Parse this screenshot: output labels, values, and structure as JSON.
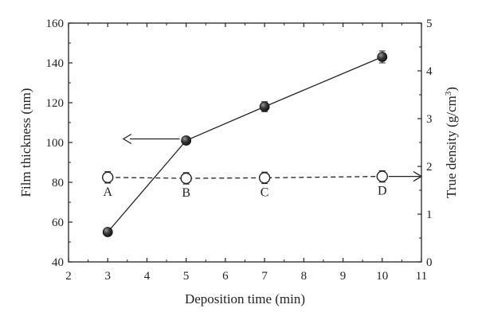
{
  "chart_data": {
    "type": "line",
    "xlabel": "Deposition time (min)",
    "ylabel_left": "Film thickness (nm)",
    "ylabel_right_main": "True density (g/cm",
    "ylabel_right_sup": "3",
    "ylabel_right_end": ")",
    "xlim": [
      2,
      11
    ],
    "ylim_left": [
      40,
      160
    ],
    "ylim_right": [
      0,
      5
    ],
    "x_ticks": [
      2,
      3,
      4,
      5,
      6,
      7,
      8,
      9,
      10,
      11
    ],
    "y_ticks_left": [
      40,
      60,
      80,
      100,
      120,
      140,
      160
    ],
    "y_ticks_right": [
      0,
      1,
      2,
      3,
      4,
      5
    ],
    "series": [
      {
        "axis": "left",
        "marker": "filled-circle",
        "line_style": "solid",
        "color": "#222222",
        "x": [
          3,
          5,
          7,
          10
        ],
        "y": [
          55,
          101,
          118,
          143
        ],
        "error": [
          0.5,
          1.5,
          2.5,
          3
        ]
      },
      {
        "axis": "right",
        "marker": "open-circle",
        "line_style": "dashed",
        "color": "#222222",
        "x": [
          3,
          5,
          7,
          10
        ],
        "y": [
          1.77,
          1.75,
          1.76,
          1.79
        ],
        "error": [
          0.12,
          0.12,
          0.12,
          0.12
        ],
        "point_labels": [
          "A",
          "B",
          "C",
          "D"
        ]
      }
    ],
    "annotations": [
      {
        "type": "arrow",
        "direction": "left",
        "points_to": "left axis"
      },
      {
        "type": "arrow",
        "direction": "right",
        "points_to": "right axis"
      }
    ],
    "grid": false,
    "legend": "none"
  }
}
